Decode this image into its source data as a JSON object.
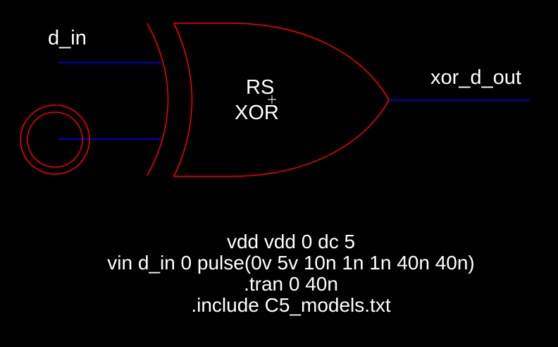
{
  "schematic": {
    "input_net": "d_in",
    "output_net": "xor_d_out",
    "gate_label_line1": "RS",
    "gate_label_line2": "XOR",
    "colors": {
      "background": "#000000",
      "gate": "#ff0000",
      "wire": "#0000ff",
      "text": "#ffffff"
    }
  },
  "spice": {
    "lines": [
      "vdd vdd 0 dc 5",
      "vin d_in 0 pulse(0v 5v 10n 1n 1n 40n 40n)",
      ".tran 0 40n",
      ".include C5_models.txt"
    ]
  }
}
